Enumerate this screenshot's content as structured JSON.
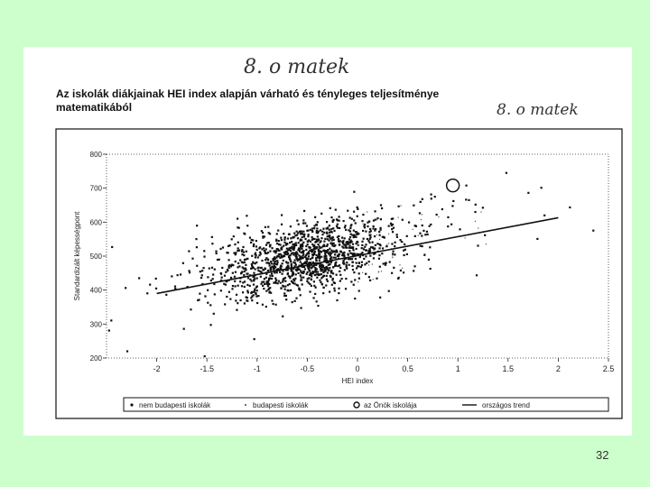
{
  "handwritten_note": "8. o matek",
  "slide_number": "32",
  "chart_data": {
    "type": "scatter",
    "title": "Az iskolák diákjainak HEI index alapján várható és tényleges teljesítménye matematikából",
    "xlabel": "HEI index",
    "ylabel": "Standardizált képességpont",
    "xlim": [
      -2.5,
      2.5
    ],
    "ylim": [
      200,
      800
    ],
    "x_ticks": [
      "-2",
      "-1.5",
      "-1",
      "-0.5",
      "0",
      "0.5",
      "1",
      "1.5",
      "2",
      "2.5"
    ],
    "y_ticks": [
      "200",
      "300",
      "400",
      "500",
      "600",
      "700",
      "800"
    ],
    "grid": false,
    "legend_position": "bottom",
    "legend": [
      {
        "marker": "dot",
        "label": "nem budapesti iskolák"
      },
      {
        "marker": "small-dot",
        "label": "budapesti iskolák"
      },
      {
        "marker": "circle",
        "label": "az Önök iskolája"
      },
      {
        "marker": "line",
        "label": "országos trend"
      }
    ],
    "series": [
      {
        "name": "országos trend",
        "type": "line",
        "x": [
          -2,
          2
        ],
        "y": [
          390,
          613
        ]
      },
      {
        "name": "az Önök iskolája",
        "type": "scatter",
        "x": [
          0.95
        ],
        "y": [
          708
        ]
      }
    ],
    "point_cloud": {
      "center_x": -0.5,
      "center_y": 495,
      "sd_x": 0.45,
      "sd_y": 50,
      "slope": 55,
      "count": 1400
    },
    "colors": {
      "background": "#ccffcc",
      "ink": "#111111"
    }
  }
}
